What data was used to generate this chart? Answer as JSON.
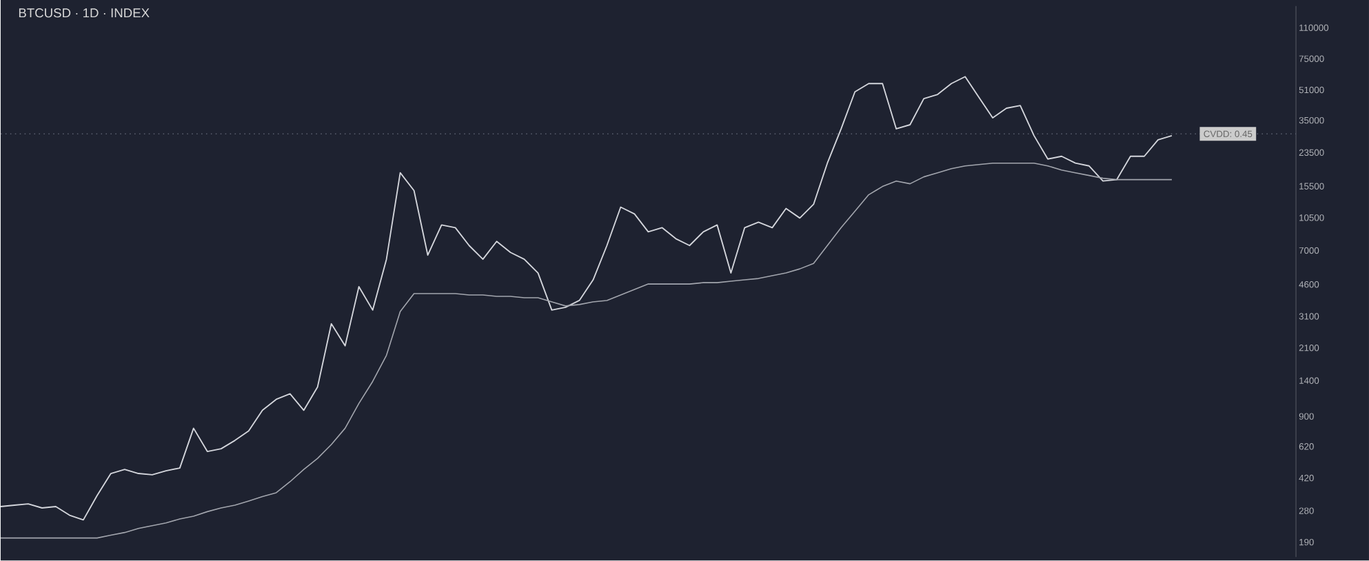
{
  "chart_data": {
    "type": "line",
    "title": "BTCUSD · 1D · INDEX",
    "categories": [
      null,
      null,
      null,
      null,
      null,
      null,
      null,
      null,
      null,
      null,
      null,
      null,
      null,
      null,
      null,
      null,
      null,
      null,
      null,
      null,
      null,
      null,
      null,
      null,
      null,
      null,
      null,
      null,
      null,
      null,
      null,
      null,
      null,
      null,
      null,
      null,
      null,
      null,
      null,
      null,
      null,
      null,
      null,
      null,
      null,
      null,
      null,
      null,
      null,
      null,
      null,
      null,
      null,
      null,
      null,
      null,
      null,
      null,
      null,
      null,
      null,
      null,
      null,
      null,
      null,
      null,
      null,
      null,
      null,
      null,
      null,
      null,
      null,
      null,
      null,
      null,
      null,
      null,
      null,
      null,
      null,
      null,
      null,
      null,
      null,
      null
    ],
    "series": [
      {
        "color": "#d4d6dc",
        "values": [
          295,
          300,
          305,
          290,
          295,
          265,
          250,
          338,
          444,
          467,
          444,
          437,
          459,
          475,
          777,
          583,
          603,
          668,
          752,
          970,
          1111,
          1189,
          970,
          1294,
          2828,
          2155,
          4473,
          3351,
          6282,
          18305,
          14682,
          6609,
          9601,
          9282,
          7445,
          6282,
          7833,
          6837,
          6282,
          5301,
          3351,
          3466,
          3775,
          4867,
          7445,
          11970,
          11000,
          8822,
          9282,
          8101,
          7445,
          8822,
          9601,
          5301,
          9282,
          9931,
          9282,
          11769,
          10455,
          12390,
          20619,
          31510,
          49818,
          55171,
          55171,
          31510,
          33152,
          45773,
          48189,
          55171,
          60079,
          46556,
          36102,
          40664,
          42050,
          28956,
          21693,
          22438,
          20619,
          19921,
          16527,
          16810,
          22438,
          22438,
          27504,
          28956
        ]
      },
      {
        "color": "#a3a6ae",
        "values": [
          200,
          200,
          200,
          200,
          200,
          200,
          200,
          200,
          207,
          214,
          225,
          233,
          241,
          253,
          262,
          277,
          290,
          300,
          316,
          334,
          350,
          401,
          467,
          535,
          635,
          777,
          1056,
          1386,
          1914,
          3293,
          4108,
          4108,
          4108,
          4108,
          4039,
          4039,
          3971,
          3971,
          3905,
          3905,
          3708,
          3527,
          3587,
          3708,
          3775,
          4039,
          4322,
          4624,
          4624,
          4624,
          4624,
          4703,
          4703,
          4786,
          4868,
          4951,
          5124,
          5301,
          5577,
          5967,
          7445,
          9282,
          11378,
          13946,
          15447,
          16527,
          15978,
          17399,
          18305,
          19256,
          19921,
          20262,
          20619,
          20619,
          20619,
          20619,
          19921,
          18935,
          18305,
          17700,
          17111,
          16810,
          16810,
          16810,
          16810,
          16810
        ]
      }
    ],
    "ylim": [
      158,
      144000
    ],
    "log": true,
    "yticks": [
      190,
      280,
      420,
      620,
      900,
      1400,
      2100,
      3100,
      4600,
      7000,
      10500,
      15500,
      23500,
      35000,
      51000,
      75000,
      110000
    ],
    "ref_lines": [
      {
        "axis": "y",
        "value": 29600,
        "color": "#5a5f6e",
        "line_style": "dotted"
      }
    ],
    "annotations": [
      "CVDD: 0.45"
    ],
    "marker": "none"
  }
}
